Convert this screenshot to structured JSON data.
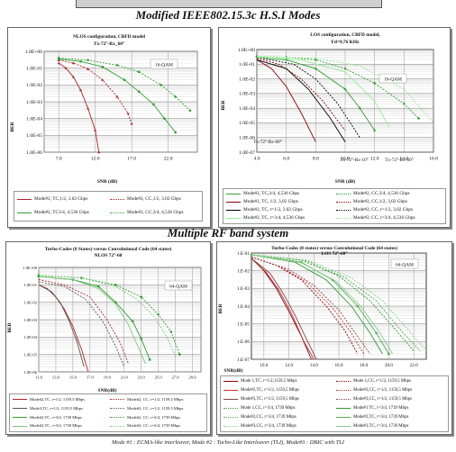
{
  "headings": {
    "top": "Modified IEEE802.15.3c H.S.I Modes",
    "middle": "Multiple RF band system"
  },
  "footer": "Mode #1 : ECMA-like interleaver, Mode #2 : Turbo-Like Interleaver (TLI), Mode#3 : DBIC with TLI",
  "chart_data": [
    {
      "type": "line",
      "title": "NLOS configuration, CBFD model",
      "subtitle": "Tx-72°-Rx_60°",
      "xlabel": "SNR (dB)",
      "ylabel": "BER",
      "xlim": [
        5,
        26
      ],
      "ylim_log10": [
        -6,
        0
      ],
      "xticks": [
        "7.0",
        "12.0",
        "17.0",
        "22.0"
      ],
      "yticks": [
        "1.0E+00",
        "1.0E-01",
        "1.0E-02",
        "1.0E-03",
        "1.0E-04",
        "1.0E-05",
        "1.0E-06"
      ],
      "annotation": "16-QAM",
      "series": [
        {
          "name": "Mode#2, TC,1/2, 3.02 Gbps",
          "color": "#b22222",
          "dash": "",
          "marker": "triangle",
          "x": [
            7,
            8,
            9,
            10,
            11,
            12,
            12.5
          ],
          "y": [
            0.2,
            0.1,
            0.03,
            0.005,
            0.0004,
            2e-05,
            1e-06
          ]
        },
        {
          "name": "Mode#2, CC,1/2, 3.02 Gbps",
          "color": "#b22222",
          "dash": "2,1.5",
          "marker": "triangle",
          "x": [
            7,
            9,
            11,
            13,
            15,
            16.5,
            17
          ],
          "y": [
            0.3,
            0.2,
            0.09,
            0.02,
            0.002,
            0.0002,
            5e-05
          ]
        },
        {
          "name": "Mode#2, TC3/4, 4.536 Gbps",
          "color": "#2ca02c",
          "dash": "",
          "marker": "circle",
          "x": [
            7,
            10,
            13,
            16,
            18,
            20,
            21.5,
            23
          ],
          "y": [
            0.35,
            0.25,
            0.12,
            0.02,
            0.004,
            0.0007,
            0.0001,
            1.5e-05
          ]
        },
        {
          "name": "Mode#2, CC,3/4, 4,536 Gbps",
          "color": "#2ca02c",
          "dash": "2,1.5",
          "marker": "circle",
          "x": [
            7,
            11,
            15,
            18,
            21,
            23,
            25
          ],
          "y": [
            0.4,
            0.3,
            0.15,
            0.06,
            0.01,
            0.002,
            0.0003
          ]
        }
      ]
    },
    {
      "type": "line",
      "title": "LOS configuration, CBFD model,",
      "subtitle": "Fd=9,76 KHz",
      "xlabel": "SNR (dB)",
      "ylabel": "BER",
      "xlim": [
        4,
        16
      ],
      "ylim_log10": [
        -7,
        0
      ],
      "xticks": [
        "4.0",
        "6.0",
        "8.0",
        "10.0",
        "12.0",
        "14.0",
        "16.0"
      ],
      "yticks": [
        "1.0E+00",
        "1.0E-01",
        "1.0E-02",
        "1.0E-03",
        "1.0E-04",
        "1.0E-05",
        "1.0E-06",
        "1.0E-07"
      ],
      "annotation": "16-QAM",
      "labels": [
        "Tx-72°-Rx-60°",
        "Tx-72°-Rx-10°",
        "Tx-72°-Rx-60°"
      ],
      "series": [
        {
          "name": "Mode#2, TC,3/4, 4,536 Gbps",
          "color": "#2ca02c",
          "dash": "",
          "marker": "diamond",
          "x": [
            4,
            6,
            8,
            10,
            11,
            12
          ],
          "y": [
            0.3,
            0.2,
            0.05,
            0.002,
            0.0001,
            3e-06
          ]
        },
        {
          "name": "Mode#2, CC,3/4, 4,536 Gbps",
          "color": "#2ca02c",
          "dash": "2,1.5",
          "marker": "diamond",
          "x": [
            4,
            6,
            8,
            10,
            12,
            14,
            15
          ],
          "y": [
            0.35,
            0.3,
            0.2,
            0.05,
            0.005,
            0.0002,
            2e-05
          ]
        },
        {
          "name": "Mode#2, TC, 1/2, 3,02 Gbps",
          "color": "#8b0000",
          "dash": "",
          "marker": "",
          "x": [
            4,
            5,
            6,
            7,
            8
          ],
          "y": [
            0.2,
            0.05,
            0.003,
            5e-05,
            5e-07
          ]
        },
        {
          "name": "Mode#2, CC,1/2, 3,02 Gbps",
          "color": "#8b0000",
          "dash": "2,1.5",
          "marker": "",
          "x": [
            4,
            5.5,
            7,
            8.5,
            10
          ],
          "y": [
            0.25,
            0.1,
            0.01,
            0.0003,
            3e-06
          ]
        },
        {
          "name": "Mode#2, TC, r=1/2, 3.02 Gbps",
          "color": "#000000",
          "dash": "",
          "marker": "",
          "x": [
            4,
            6,
            7.5,
            9,
            10
          ],
          "y": [
            0.2,
            0.05,
            0.002,
            2e-05,
            5e-07
          ]
        },
        {
          "name": "Mode#2, CC, r=1/2, 3,02 Gbps",
          "color": "#000000",
          "dash": "2,1.5",
          "marker": "",
          "x": [
            4,
            6.5,
            8,
            9.5,
            11
          ],
          "y": [
            0.3,
            0.1,
            0.01,
            0.0002,
            1e-06
          ]
        },
        {
          "name": "Mode#2, TC, r=3/4, 4,536 Gbps",
          "color": "#90ee90",
          "dash": "",
          "marker": "",
          "x": [
            4,
            7,
            10,
            12,
            13
          ],
          "y": [
            0.3,
            0.2,
            0.03,
            0.0003,
            5e-06
          ]
        },
        {
          "name": "Mode#2, CC, r=3/4, 4,536 Gbps",
          "color": "#90ee90",
          "dash": "2,1.5",
          "marker": "",
          "x": [
            4,
            8,
            11,
            14,
            16
          ],
          "y": [
            0.35,
            0.25,
            0.08,
            0.002,
            1e-05
          ]
        }
      ]
    },
    {
      "type": "line",
      "title": "Turbo-Codes (8 States) versus Convolutional Code (64 states)",
      "subtitle": "NLOS 72°-60",
      "xlabel": "SNR(dB)",
      "ylabel": "BER",
      "xlim": [
        11,
        30
      ],
      "ylim_log10": [
        -6,
        0
      ],
      "xticks": [
        "11.0",
        "13.0",
        "15.0",
        "17.0",
        "19.0",
        "21.0",
        "23.0",
        "25.0",
        "27.0",
        "29.0"
      ],
      "yticks": [
        "1.0E+00",
        "1.0E-01",
        "1.0E-02",
        "1.0E-03",
        "1.0E-04",
        "1.0E-05",
        "1.0E-06"
      ],
      "annotation": "64-QAM",
      "series": [
        {
          "name": "Mode#2,TC, r=1/2, 1159,5 Mbps",
          "color": "#b22222",
          "dash": "",
          "marker": "",
          "x": [
            11,
            12,
            13,
            14,
            15,
            16,
            16.8
          ],
          "y": [
            0.1,
            0.06,
            0.02,
            0.004,
            0.0004,
            2e-05,
            1e-06
          ]
        },
        {
          "name": "Mode#2, CC, r=1/2, 1159,5 Mbps",
          "color": "#b22222",
          "dash": "2,1.5",
          "marker": "",
          "x": [
            11,
            14,
            17,
            19,
            20.5,
            21.5
          ],
          "y": [
            0.2,
            0.1,
            0.02,
            0.001,
            5e-05,
            3e-06
          ]
        },
        {
          "name": "Mode3,TC, r=1/2, 1159,5 Mbps",
          "color": "#555555",
          "dash": "",
          "marker": "",
          "x": [
            11,
            12.5,
            13.5,
            14.5,
            15.5,
            16.3
          ],
          "y": [
            0.1,
            0.04,
            0.01,
            0.001,
            5e-05,
            2e-06
          ]
        },
        {
          "name": "Mode#3, CC, r=1/2, 1159,5 Mbps",
          "color": "#555555",
          "dash": "2,1.5",
          "marker": "",
          "x": [
            11,
            14,
            16.5,
            18.5,
            20,
            21
          ],
          "y": [
            0.15,
            0.08,
            0.015,
            0.0008,
            3e-05,
            2e-06
          ]
        },
        {
          "name": "Mode#2,TC, r=3/4, 1739 Mbps",
          "color": "#2ca02c",
          "dash": "",
          "marker": "circle",
          "x": [
            11,
            15,
            18,
            20,
            22,
            23,
            24
          ],
          "y": [
            0.3,
            0.2,
            0.08,
            0.01,
            0.0008,
            8e-05,
            5e-06
          ]
        },
        {
          "name": "Mode#2, CC, r=3/4, 1739 Mbps",
          "color": "#2ca02c",
          "dash": "2,1.5",
          "marker": "circle",
          "x": [
            11,
            16,
            20,
            23,
            25,
            26.5,
            27.5
          ],
          "y": [
            0.35,
            0.25,
            0.1,
            0.02,
            0.002,
            0.0002,
            1e-05
          ]
        },
        {
          "name": "Mode#3,TC, r=3/4, 1739 Mbps",
          "color": "#7cc47c",
          "dash": "",
          "marker": "",
          "x": [
            11,
            15,
            18,
            20,
            21.5,
            22.5,
            23.5
          ],
          "y": [
            0.3,
            0.2,
            0.06,
            0.008,
            0.0005,
            4e-05,
            3e-06
          ]
        },
        {
          "name": "Mode#3, CC, r=3/4, 1739 Mbps",
          "color": "#7cc47c",
          "dash": "2,1.5",
          "marker": "",
          "x": [
            11,
            16,
            20,
            22.5,
            24.5,
            26,
            27
          ],
          "y": [
            0.35,
            0.25,
            0.08,
            0.015,
            0.0015,
            0.0001,
            8e-06
          ]
        }
      ]
    },
    {
      "type": "line",
      "title": "Turbo-Codes (8 states) versus Convolutional Code (64 states)",
      "subtitle": "LOS 72°-60°",
      "xlabel": "SNR(dB)",
      "ylabel": "BER",
      "xlim": [
        9,
        23
      ],
      "ylim_log10": [
        -7,
        -1
      ],
      "xticks": [
        "10.0",
        "12.0",
        "14.0",
        "16.0",
        "18.0",
        "20.0",
        "22.0"
      ],
      "yticks": [
        "1.E-01",
        "1.E-02",
        "1.E-03",
        "1.E-04",
        "1.E-05",
        "1.E-06",
        "1.E-07"
      ],
      "annotation": "64-QAM",
      "series": [
        {
          "name": "Mode 1,TC, r=1/2,1159,5 Mbps",
          "color": "#8b0000",
          "dash": "",
          "marker": "",
          "x": [
            9,
            10,
            11,
            12,
            13,
            13.8
          ],
          "y": [
            0.05,
            0.01,
            0.001,
            5e-05,
            2e-06,
            1e-07
          ]
        },
        {
          "name": "Mode 1,CC, r=1/2, 1159,5 Mbps",
          "color": "#8b0000",
          "dash": "2,1.5",
          "marker": "",
          "x": [
            9,
            11,
            13,
            15,
            16.5,
            17.5
          ],
          "y": [
            0.06,
            0.02,
            0.003,
            0.0001,
            4e-06,
            2e-07
          ]
        },
        {
          "name": "Mode#2,TC, r=1/2, 1159,5 Mbps",
          "color": "#cc3333",
          "dash": "",
          "marker": "",
          "x": [
            9,
            10.2,
            11.2,
            12.2,
            13.2,
            14
          ],
          "y": [
            0.05,
            0.008,
            0.0008,
            4e-05,
            1e-06,
            1e-07
          ]
        },
        {
          "name": "Mode#2,CC, r=1/2, 1159,5 Mbps",
          "color": "#cc3333",
          "dash": "2,1.5",
          "marker": "",
          "x": [
            9,
            11.5,
            13.5,
            15.5,
            17,
            18
          ],
          "y": [
            0.06,
            0.015,
            0.002,
            8e-05,
            3e-06,
            2e-07
          ]
        },
        {
          "name": "Mode#3,TC, r=1/2, 1159,5 Mbps",
          "color": "#884444",
          "dash": "",
          "marker": "",
          "x": [
            9,
            10.5,
            11.5,
            12.5,
            13.5,
            14.2
          ],
          "y": [
            0.05,
            0.007,
            0.0006,
            3e-05,
            1e-06,
            1e-07
          ]
        },
        {
          "name": "Mode#3,CC, r=1/2, 1159,5 Mbps",
          "color": "#884444",
          "dash": "2,1.5",
          "marker": "",
          "x": [
            9,
            12,
            14,
            16,
            17.5,
            18.5
          ],
          "y": [
            0.06,
            0.012,
            0.0015,
            6e-05,
            2e-06,
            2e-07
          ]
        },
        {
          "name": "Mode 1,CC, r=3/4, 1739 Mbps",
          "color": "#2ca02c",
          "dash": "2,1.5",
          "marker": "",
          "x": [
            9,
            13,
            16,
            18.5,
            20.5,
            22
          ],
          "y": [
            0.08,
            0.04,
            0.005,
            0.0002,
            5e-06,
            3e-07
          ]
        },
        {
          "name": "Mode#1 TC, r=3/4, 1739 Mbps",
          "color": "#2ca02c",
          "dash": "",
          "marker": "",
          "x": [
            9,
            12.5,
            15,
            17,
            18.5,
            19.5
          ],
          "y": [
            0.08,
            0.03,
            0.003,
            0.0001,
            3e-06,
            2e-07
          ]
        },
        {
          "name": "Mode#2,CC, r=3/4, 1739 Mbps",
          "color": "#55aa55",
          "dash": "2,1.5",
          "marker": "",
          "x": [
            9,
            13.5,
            16.5,
            19,
            21,
            22.5
          ],
          "y": [
            0.08,
            0.035,
            0.004,
            0.0002,
            4e-06,
            3e-07
          ]
        },
        {
          "name": "Mode#2,TC, r=3/4, 1739 Mbps",
          "color": "#55aa55",
          "dash": "",
          "marker": "circle",
          "x": [
            9,
            13,
            15.5,
            17.5,
            19,
            20
          ],
          "y": [
            0.08,
            0.03,
            0.003,
            0.0001,
            3e-06,
            2e-07
          ]
        },
        {
          "name": "Mode#3,CC, r=3/4, 1739 Mbps",
          "color": "#88cc88",
          "dash": "2,1.5",
          "marker": "",
          "x": [
            9,
            13.5,
            17,
            19.5,
            21.5,
            23
          ],
          "y": [
            0.08,
            0.04,
            0.004,
            0.0002,
            5e-06,
            3e-07
          ]
        },
        {
          "name": "Mode#3,TC, r=3/4, 1739 Mbps",
          "color": "#88cc88",
          "dash": "",
          "marker": "",
          "x": [
            9,
            13,
            15.8,
            17.8,
            19.3,
            20.3
          ],
          "y": [
            0.08,
            0.028,
            0.0025,
            9e-05,
            3e-06,
            2e-07
          ]
        }
      ]
    }
  ]
}
